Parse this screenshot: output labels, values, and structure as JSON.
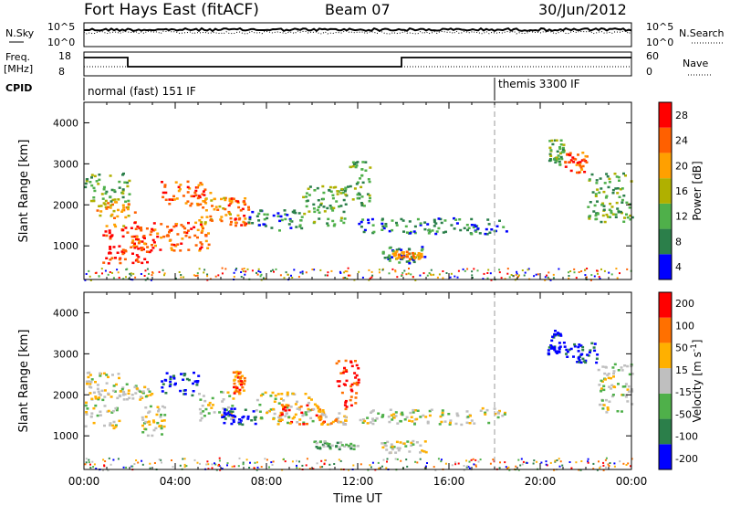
{
  "header": {
    "station": "Fort Hays East (fitACF)",
    "beam": "Beam 07",
    "date": "30/Jun/2012"
  },
  "summary_panels": {
    "nsky_label": "N.Sky",
    "nsky_ticks": [
      "10^5",
      "10^0"
    ],
    "nsearch_label": "N.Search",
    "nsearch_ticks": [
      "10^5",
      "10^0"
    ],
    "freq_label": "Freq.",
    "freq_unit": "[MHz]",
    "freq_ticks": [
      "18",
      "8"
    ],
    "nave_label": "Nave",
    "nave_ticks": [
      "60",
      "0"
    ],
    "cpid_label": "CPID",
    "cpid_segments": [
      {
        "label": "normal (fast) 151 IF",
        "start_h": 0,
        "end_h": 18
      },
      {
        "label": "themis 3300 IF",
        "start_h": 18,
        "end_h": 24
      }
    ]
  },
  "chart_data": [
    {
      "type": "heatmap",
      "name": "Power",
      "ylabel": "Slant Range [km]",
      "xlabel": "Time UT",
      "xlim_hours": [
        0,
        24
      ],
      "ylim_km": [
        180,
        4500
      ],
      "yticks": [
        "4000",
        "3000",
        "2000",
        "1000"
      ],
      "colorbar": {
        "label": "Power [dB]",
        "ticks": [
          "28",
          "24",
          "20",
          "16",
          "12",
          "8",
          "4"
        ],
        "colors": [
          "#0000ff",
          "#2b7f4a",
          "#4fb04a",
          "#b0b000",
          "#ffa000",
          "#ff6000",
          "#ff0000"
        ]
      },
      "regions": [
        {
          "t0": 0.0,
          "t1": 2.0,
          "r0": 2100,
          "r1": 2800,
          "level": 2
        },
        {
          "t0": 0.5,
          "t1": 2.2,
          "r0": 1500,
          "r1": 2100,
          "level": 4
        },
        {
          "t0": 0.8,
          "t1": 3.0,
          "r0": 600,
          "r1": 1500,
          "level": 6
        },
        {
          "t0": 2.0,
          "t1": 5.5,
          "r0": 900,
          "r1": 1600,
          "level": 5
        },
        {
          "t0": 3.3,
          "t1": 5.5,
          "r0": 2000,
          "r1": 2600,
          "level": 5
        },
        {
          "t0": 5.0,
          "t1": 6.5,
          "r0": 1600,
          "r1": 2200,
          "level": 4
        },
        {
          "t0": 6.3,
          "t1": 7.2,
          "r0": 1500,
          "r1": 2200,
          "level": 5
        },
        {
          "t0": 7.0,
          "t1": 9.5,
          "r0": 1400,
          "r1": 1900,
          "level": 1
        },
        {
          "t0": 9.5,
          "t1": 11.5,
          "r0": 1500,
          "r1": 2500,
          "level": 2
        },
        {
          "t0": 11.5,
          "t1": 12.5,
          "r0": 2000,
          "r1": 3100,
          "level": 2
        },
        {
          "t0": 12.0,
          "t1": 18.5,
          "r0": 1300,
          "r1": 1700,
          "level": 1
        },
        {
          "t0": 13.0,
          "t1": 15.0,
          "r0": 600,
          "r1": 1000,
          "level": 1
        },
        {
          "t0": 13.5,
          "t1": 14.8,
          "r0": 700,
          "r1": 900,
          "level": 4
        },
        {
          "t0": 20.3,
          "t1": 21.0,
          "r0": 3000,
          "r1": 3600,
          "level": 2
        },
        {
          "t0": 21.0,
          "t1": 22.0,
          "r0": 2800,
          "r1": 3300,
          "level": 5
        },
        {
          "t0": 22.0,
          "t1": 24.0,
          "r0": 1600,
          "r1": 2800,
          "level": 2
        }
      ]
    },
    {
      "type": "heatmap",
      "name": "Velocity",
      "ylabel": "Slant Range [km]",
      "xlabel": "Time UT",
      "xlim_hours": [
        0,
        24
      ],
      "ylim_km": [
        180,
        4500
      ],
      "xticks": [
        "00:00",
        "04:00",
        "08:00",
        "12:00",
        "16:00",
        "20:00",
        "00:00"
      ],
      "yticks": [
        "4000",
        "3000",
        "2000",
        "1000"
      ],
      "colorbar": {
        "label": "Velocity [m s^-1]",
        "ticks": [
          "200",
          "100",
          "50",
          "15",
          "-15",
          "-50",
          "-100",
          "-200"
        ],
        "colors": [
          "#0000ff",
          "#2b7f4a",
          "#4fb04a",
          "#bfbfbf",
          "#ffb000",
          "#ff7000",
          "#ff0000"
        ]
      },
      "regions": [
        {
          "t0": 0.0,
          "t1": 1.5,
          "r0": 1200,
          "r1": 2600,
          "level": 3
        },
        {
          "t0": 1.5,
          "t1": 3.0,
          "r0": 1900,
          "r1": 2300,
          "level": 3
        },
        {
          "t0": 2.5,
          "t1": 3.5,
          "r0": 1000,
          "r1": 1800,
          "level": 3
        },
        {
          "t0": 3.3,
          "t1": 5.0,
          "r0": 2000,
          "r1": 2600,
          "level": 0
        },
        {
          "t0": 5.0,
          "t1": 6.5,
          "r0": 1400,
          "r1": 2100,
          "level": 3
        },
        {
          "t0": 6.0,
          "t1": 7.5,
          "r0": 1300,
          "r1": 1700,
          "level": 0
        },
        {
          "t0": 6.5,
          "t1": 7.0,
          "r0": 2000,
          "r1": 2600,
          "level": 5
        },
        {
          "t0": 7.5,
          "t1": 10.0,
          "r0": 1300,
          "r1": 2100,
          "level": 3
        },
        {
          "t0": 8.5,
          "t1": 10.5,
          "r0": 1300,
          "r1": 1800,
          "level": 5
        },
        {
          "t0": 10.0,
          "t1": 11.5,
          "r0": 1300,
          "r1": 1700,
          "level": 4
        },
        {
          "t0": 11.0,
          "t1": 12.0,
          "r0": 1700,
          "r1": 2900,
          "level": 6
        },
        {
          "t0": 10.0,
          "t1": 12.0,
          "r0": 700,
          "r1": 900,
          "level": 2
        },
        {
          "t0": 12.0,
          "t1": 18.5,
          "r0": 1300,
          "r1": 1700,
          "level": 3
        },
        {
          "t0": 13.0,
          "t1": 15.0,
          "r0": 600,
          "r1": 900,
          "level": 3
        },
        {
          "t0": 20.3,
          "t1": 21.0,
          "r0": 3000,
          "r1": 3600,
          "level": 0
        },
        {
          "t0": 21.0,
          "t1": 22.5,
          "r0": 2800,
          "r1": 3300,
          "level": 0
        },
        {
          "t0": 22.5,
          "t1": 24.0,
          "r0": 1600,
          "r1": 2800,
          "level": 3
        }
      ]
    }
  ]
}
